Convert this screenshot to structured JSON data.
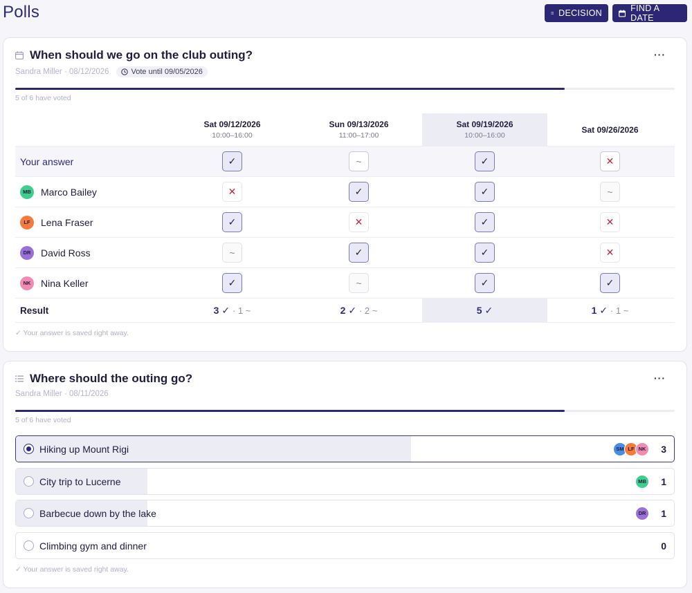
{
  "header": {
    "title": "Polls",
    "decision_label": "DECISION",
    "find_date_label": "FIND A DATE"
  },
  "poll1": {
    "title": "When should we go on the club outing?",
    "author_line": "Sandra Miller · 08/12/2026",
    "deadline": "Vote until 09/05/2026",
    "voted_text": "5 of 6 have voted",
    "progress": 0.833,
    "columns": [
      {
        "date": "Sat 09/12/2026",
        "time": "10:00–16:00"
      },
      {
        "date": "Sun 09/13/2026",
        "time": "11:00–17:00"
      },
      {
        "date": "Sat 09/19/2026",
        "time": "10:00–16:00"
      },
      {
        "date": "Sat 09/26/2026",
        "time": ""
      }
    ],
    "your_answer_label": "Your answer",
    "your_answers": [
      "yes",
      "maybe",
      "yes",
      "no"
    ],
    "participants": [
      {
        "name": "Marco Bailey",
        "initials": "MB",
        "color": "#3ecf8e",
        "answers": [
          "no",
          "yes",
          "yes",
          "maybe"
        ]
      },
      {
        "name": "Lena Fraser",
        "initials": "LF",
        "color": "#f57a3b",
        "answers": [
          "yes",
          "no",
          "yes",
          "no"
        ]
      },
      {
        "name": "David Ross",
        "initials": "DR",
        "color": "#9b6fd8",
        "answers": [
          "maybe",
          "yes",
          "yes",
          "no"
        ]
      },
      {
        "name": "Nina Keller",
        "initials": "NK",
        "color": "#f28bb0",
        "answers": [
          "yes",
          "maybe",
          "yes",
          "yes"
        ]
      }
    ],
    "result_label": "Result",
    "results": [
      {
        "yes": "3 ✓",
        "maybe": "· 1 ~"
      },
      {
        "yes": "2 ✓",
        "maybe": "· 2 ~"
      },
      {
        "yes": "5 ✓",
        "maybe": ""
      },
      {
        "yes": "1 ✓",
        "maybe": "· 1 ~"
      }
    ],
    "saved_note": "✓ Your answer is saved right away."
  },
  "poll2": {
    "title": "Where should the outing go?",
    "author_line": "Sandra Miller · 08/11/2026",
    "voted_text": "5 of 6 have voted",
    "progress": 0.833,
    "options": [
      {
        "label": "Hiking up Mount Rigi",
        "count": "3",
        "share": 0.6,
        "selected": true,
        "voters": [
          {
            "initials": "SM",
            "color": "#4a8de0"
          },
          {
            "initials": "LF",
            "color": "#f57a3b"
          },
          {
            "initials": "NK",
            "color": "#f28bb0"
          }
        ]
      },
      {
        "label": "City trip to Lucerne",
        "count": "1",
        "share": 0.2,
        "selected": false,
        "voters": [
          {
            "initials": "MB",
            "color": "#3ecf8e"
          }
        ]
      },
      {
        "label": "Barbecue down by the lake",
        "count": "1",
        "share": 0.2,
        "selected": false,
        "voters": [
          {
            "initials": "DR",
            "color": "#9b6fd8"
          }
        ]
      },
      {
        "label": "Climbing gym and dinner",
        "count": "0",
        "share": 0,
        "selected": false,
        "voters": []
      }
    ],
    "saved_note": "✓ Your answer is saved right away."
  },
  "colors": {
    "accent": "#2b2775",
    "yes": "#1f1d3d",
    "no": "#c0283a",
    "maybe": "#8a8a9a"
  },
  "icons": {
    "decision": "list-icon",
    "find_date": "calendar-icon",
    "poll1": "calendar-icon",
    "poll2": "list-icon",
    "deadline": "clock-icon"
  }
}
